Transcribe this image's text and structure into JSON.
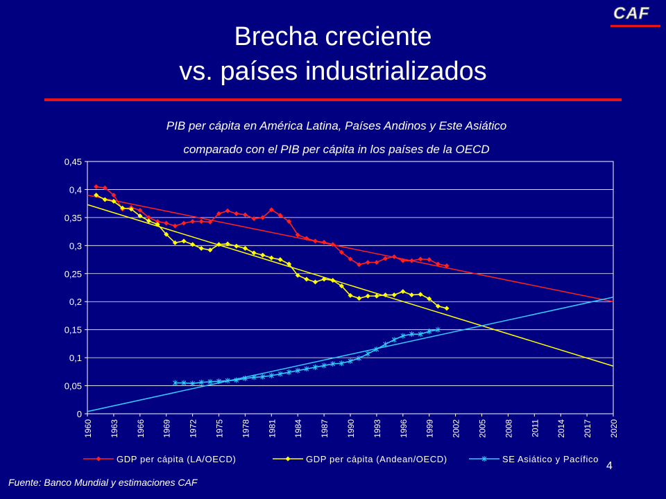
{
  "slide": {
    "title_line1": "Brecha creciente",
    "title_line2": "vs. países industrializados",
    "subtitle_line1": "PIB per cápita en América Latina, Países Andinos y Este Asiático",
    "subtitle_line2": "comparado con el PIB per cápita in los países de la OECD",
    "source": "Fuente: Banco Mundial y estimaciones CAF",
    "page_number": "4",
    "logo_text": "CAF"
  },
  "colors": {
    "background": "#000080",
    "accent_rule": "#e8141c",
    "series_la": "#ff2020",
    "series_andean": "#ffff00",
    "series_asia": "#33ccff"
  },
  "chart_data": {
    "type": "line",
    "title": "PIB per cápita en América Latina, Países Andinos y Este Asiático comparado con el PIB per cápita in los países de la OECD",
    "xlabel": "",
    "ylabel": "",
    "xlim": [
      1960,
      2020
    ],
    "ylim": [
      0,
      0.45
    ],
    "grid": "horizontal",
    "legend": "bottom",
    "y_ticks": [
      {
        "value": 0,
        "label": "0"
      },
      {
        "value": 0.05,
        "label": "0,05"
      },
      {
        "value": 0.1,
        "label": "0,1"
      },
      {
        "value": 0.15,
        "label": "0,15"
      },
      {
        "value": 0.2,
        "label": "0,2"
      },
      {
        "value": 0.25,
        "label": "0,25"
      },
      {
        "value": 0.3,
        "label": "0,3"
      },
      {
        "value": 0.35,
        "label": "0,35"
      },
      {
        "value": 0.4,
        "label": "0,4"
      },
      {
        "value": 0.45,
        "label": "0,45"
      }
    ],
    "x_ticks": [
      "1960",
      "1963",
      "1966",
      "1969",
      "1972",
      "1975",
      "1978",
      "1981",
      "1984",
      "1987",
      "1990",
      "1993",
      "1996",
      "1999",
      "2002",
      "2005",
      "2008",
      "2011",
      "2014",
      "2017",
      "2020"
    ],
    "series": [
      {
        "name": "GDP per cápita (LA/OECD)",
        "color": "#ff2020",
        "marker": "diamond",
        "x": [
          1961,
          1962,
          1963,
          1964,
          1965,
          1966,
          1967,
          1968,
          1969,
          1970,
          1971,
          1972,
          1973,
          1974,
          1975,
          1976,
          1977,
          1978,
          1979,
          1980,
          1981,
          1982,
          1983,
          1984,
          1985,
          1986,
          1987,
          1988,
          1989,
          1990,
          1991,
          1992,
          1993,
          1994,
          1995,
          1996,
          1997,
          1998,
          1999,
          2000,
          2001
        ],
        "y": [
          0.405,
          0.403,
          0.39,
          0.365,
          0.368,
          0.363,
          0.35,
          0.343,
          0.34,
          0.335,
          0.34,
          0.343,
          0.343,
          0.342,
          0.357,
          0.362,
          0.357,
          0.355,
          0.348,
          0.35,
          0.364,
          0.354,
          0.343,
          0.319,
          0.313,
          0.308,
          0.306,
          0.302,
          0.288,
          0.276,
          0.266,
          0.27,
          0.27,
          0.277,
          0.28,
          0.273,
          0.273,
          0.276,
          0.275,
          0.267,
          0.264
        ]
      },
      {
        "name": "GDP per cápita (Andean/OECD)",
        "color": "#ffff00",
        "marker": "diamond",
        "x": [
          1961,
          1962,
          1963,
          1964,
          1965,
          1966,
          1967,
          1968,
          1969,
          1970,
          1971,
          1972,
          1973,
          1974,
          1975,
          1976,
          1977,
          1978,
          1979,
          1980,
          1981,
          1982,
          1983,
          1984,
          1985,
          1986,
          1987,
          1988,
          1989,
          1990,
          1991,
          1992,
          1993,
          1994,
          1995,
          1996,
          1997,
          1998,
          1999,
          2000,
          2001
        ],
        "y": [
          0.39,
          0.382,
          0.379,
          0.367,
          0.365,
          0.353,
          0.344,
          0.338,
          0.32,
          0.305,
          0.308,
          0.302,
          0.295,
          0.292,
          0.302,
          0.303,
          0.299,
          0.295,
          0.287,
          0.283,
          0.278,
          0.275,
          0.267,
          0.247,
          0.24,
          0.235,
          0.24,
          0.238,
          0.228,
          0.211,
          0.206,
          0.21,
          0.21,
          0.212,
          0.212,
          0.218,
          0.212,
          0.213,
          0.205,
          0.192,
          0.188
        ]
      },
      {
        "name": "SE Asiático y Pacífico",
        "color": "#33ccff",
        "marker": "cross",
        "x": [
          1970,
          1971,
          1972,
          1973,
          1974,
          1975,
          1976,
          1977,
          1978,
          1979,
          1980,
          1981,
          1982,
          1983,
          1984,
          1985,
          1986,
          1987,
          1988,
          1989,
          1990,
          1991,
          1992,
          1993,
          1994,
          1995,
          1996,
          1997,
          1998,
          1999,
          2000
        ],
        "y": [
          0.055,
          0.055,
          0.054,
          0.056,
          0.057,
          0.058,
          0.059,
          0.06,
          0.063,
          0.065,
          0.066,
          0.068,
          0.071,
          0.074,
          0.077,
          0.08,
          0.083,
          0.086,
          0.089,
          0.09,
          0.094,
          0.099,
          0.107,
          0.115,
          0.124,
          0.132,
          0.139,
          0.142,
          0.142,
          0.147,
          0.15
        ]
      }
    ],
    "trend_lines": [
      {
        "series": "GDP per cápita (LA/OECD)",
        "color": "#ff2020",
        "x": [
          1960,
          2020
        ],
        "y": [
          0.39,
          0.2
        ]
      },
      {
        "series": "GDP per cápita (Andean/OECD)",
        "color": "#ffff00",
        "x": [
          1960,
          2020
        ],
        "y": [
          0.373,
          0.085
        ]
      },
      {
        "series": "SE Asiático y Pacífico",
        "color": "#33ccff",
        "x": [
          1960,
          2020
        ],
        "y": [
          0.004,
          0.208
        ]
      }
    ]
  }
}
